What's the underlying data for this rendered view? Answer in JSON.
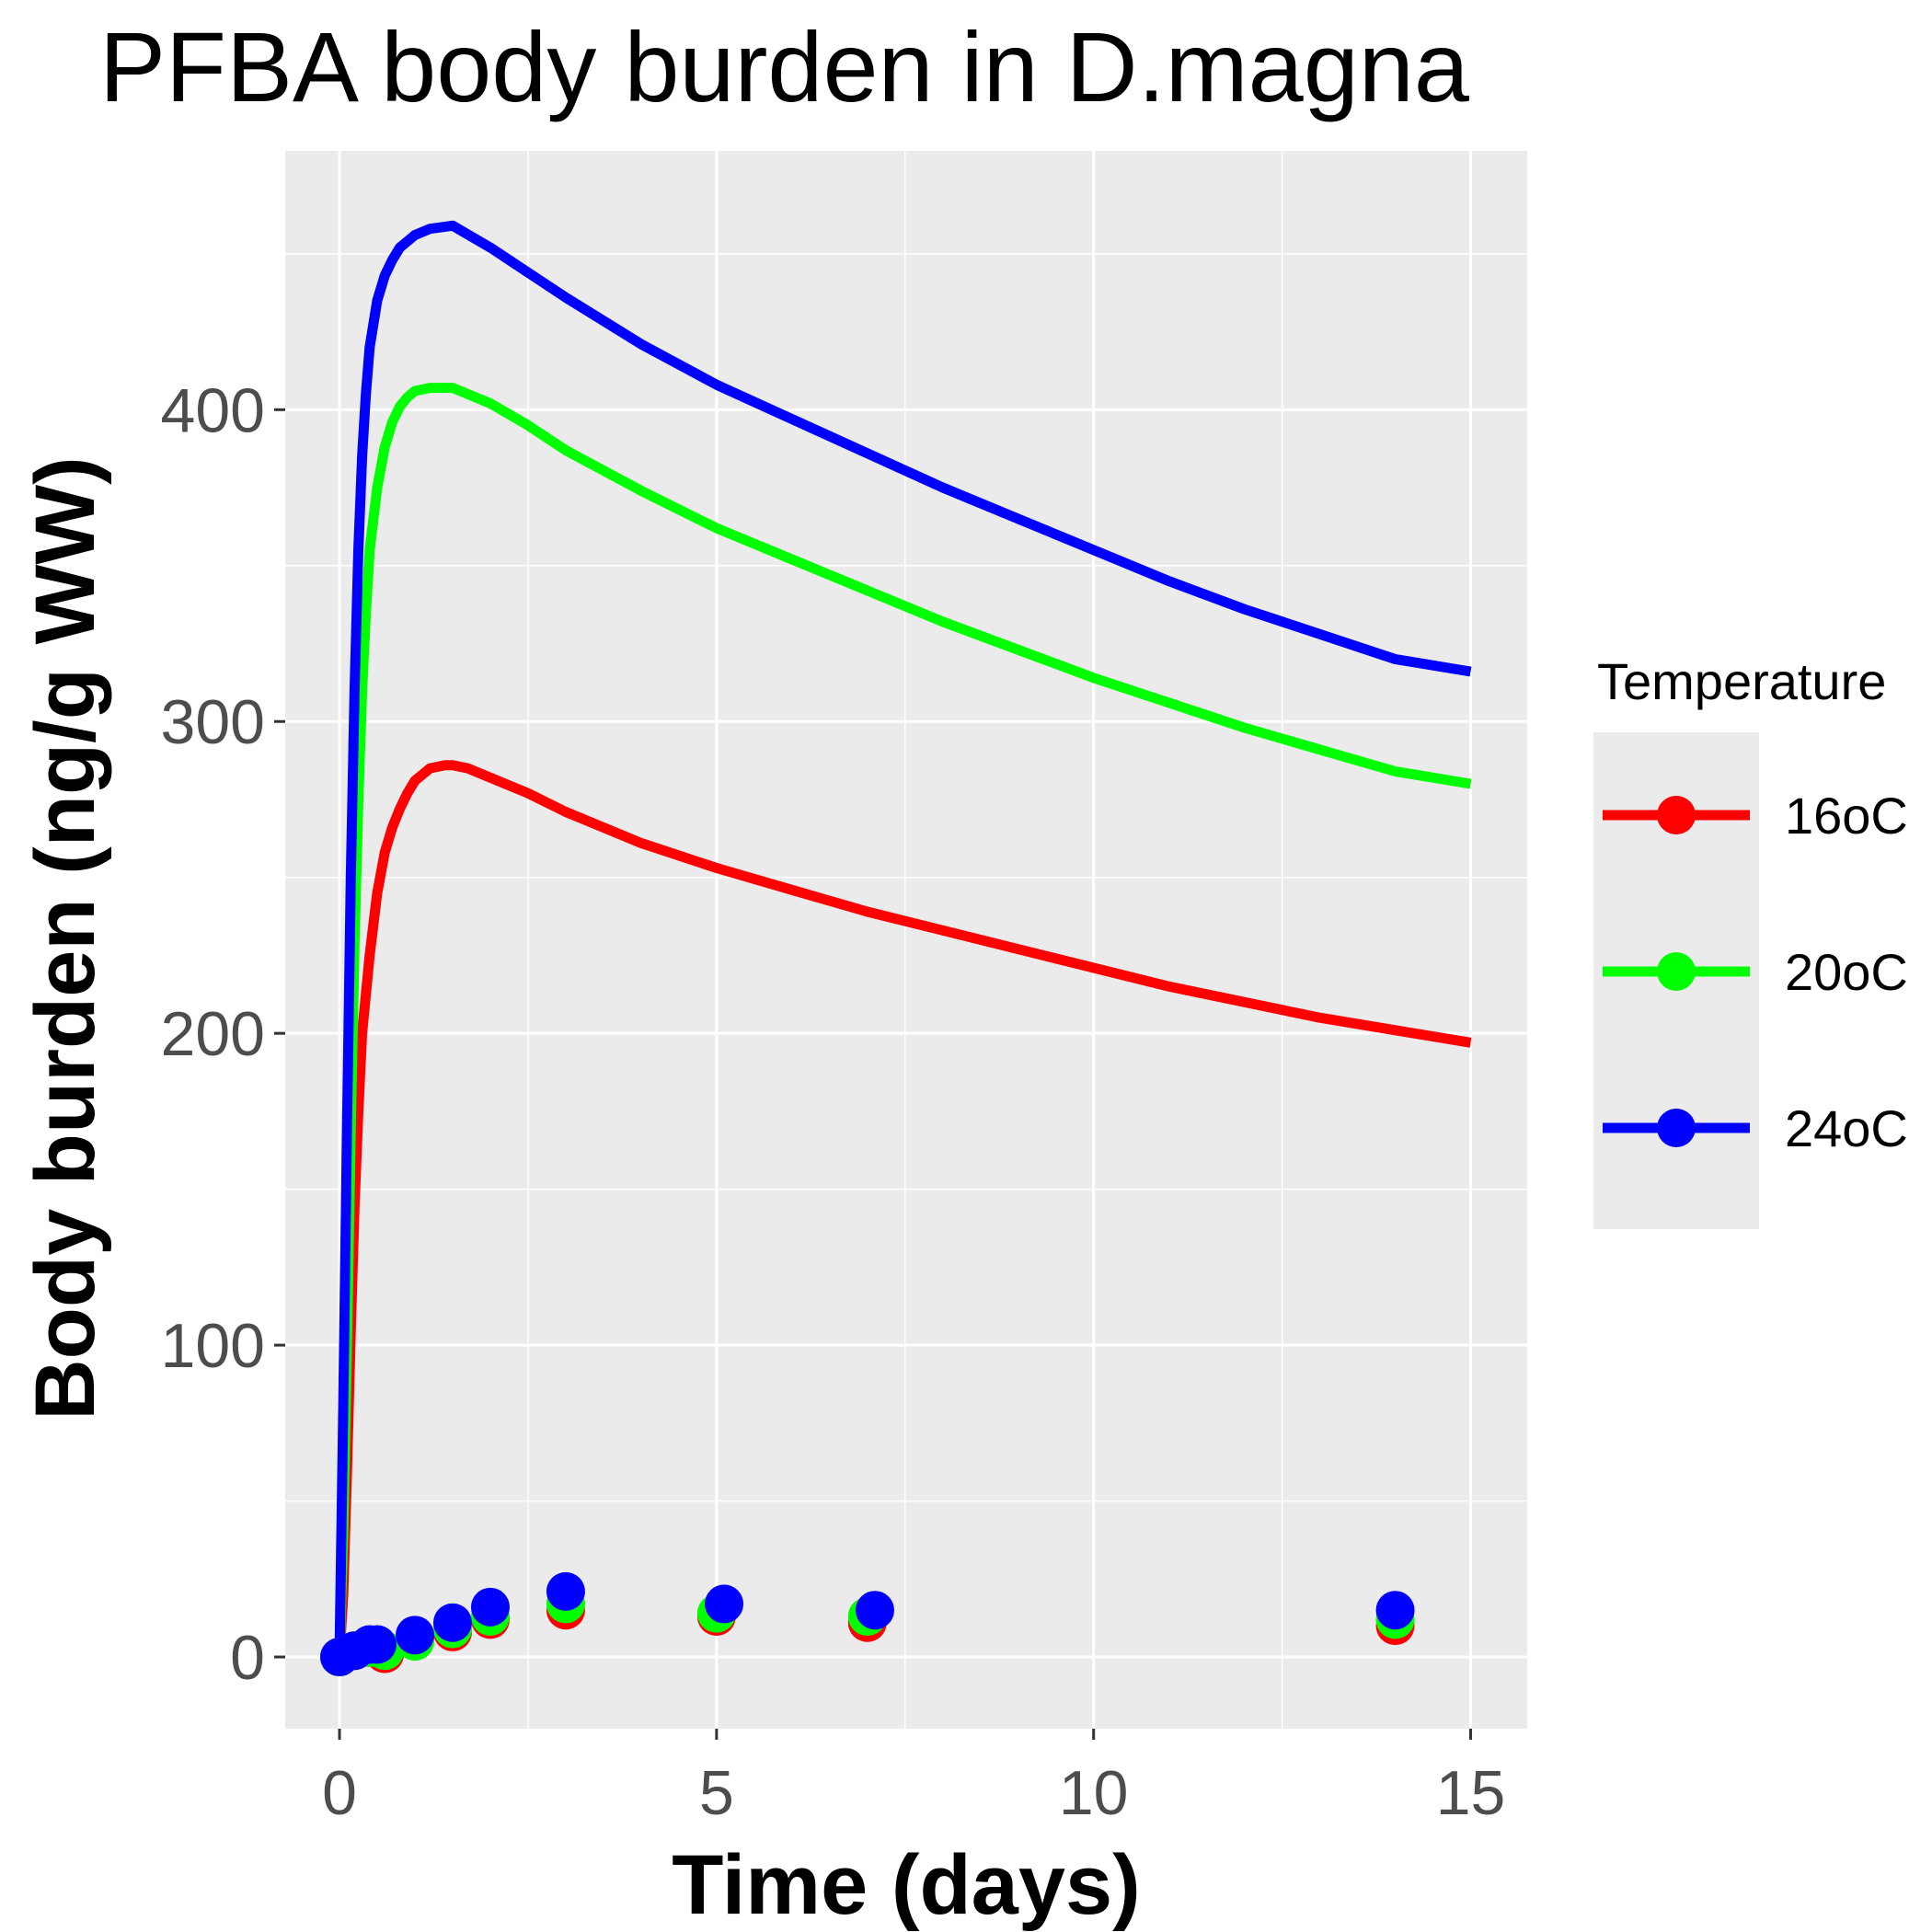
{
  "chart_data": {
    "type": "line",
    "title": "PFBA body burden in D.magna",
    "xlabel": "Time (days)",
    "ylabel": "Body burden (ng/g WW)",
    "xlim": [
      -0.72,
      15.75
    ],
    "ylim": [
      -23,
      483
    ],
    "x_ticks": [
      0,
      5,
      10,
      15
    ],
    "y_ticks": [
      0,
      100,
      200,
      300,
      400
    ],
    "grid": true,
    "legend": {
      "title": "Temperature",
      "position": "right"
    },
    "series": [
      {
        "name": "16oC",
        "color": "#ff0000",
        "line": [
          [
            0,
            0
          ],
          [
            0.05,
            20
          ],
          [
            0.1,
            60
          ],
          [
            0.15,
            105
          ],
          [
            0.2,
            145
          ],
          [
            0.25,
            175
          ],
          [
            0.3,
            200
          ],
          [
            0.4,
            225
          ],
          [
            0.5,
            245
          ],
          [
            0.6,
            258
          ],
          [
            0.7,
            266
          ],
          [
            0.8,
            272
          ],
          [
            0.9,
            277
          ],
          [
            1.0,
            281
          ],
          [
            1.2,
            285
          ],
          [
            1.4,
            286
          ],
          [
            1.5,
            286
          ],
          [
            1.7,
            285
          ],
          [
            2,
            282
          ],
          [
            2.5,
            277
          ],
          [
            3,
            271
          ],
          [
            4,
            261
          ],
          [
            5,
            253
          ],
          [
            6,
            246
          ],
          [
            7,
            239
          ],
          [
            8,
            233
          ],
          [
            9,
            227
          ],
          [
            10,
            221
          ],
          [
            11,
            215
          ],
          [
            12,
            210
          ],
          [
            13,
            205
          ],
          [
            14,
            201
          ],
          [
            15,
            197
          ]
        ],
        "points": [
          [
            0,
            0
          ],
          [
            0.2,
            2
          ],
          [
            0.4,
            3
          ],
          [
            0.6,
            1
          ],
          [
            1,
            6
          ],
          [
            1.5,
            8
          ],
          [
            2,
            12
          ],
          [
            3,
            15
          ],
          [
            5,
            13
          ],
          [
            7,
            11
          ],
          [
            14,
            10
          ]
        ]
      },
      {
        "name": "20oC",
        "color": "#00ff00",
        "line": [
          [
            0,
            0
          ],
          [
            0.05,
            40
          ],
          [
            0.1,
            100
          ],
          [
            0.15,
            170
          ],
          [
            0.2,
            230
          ],
          [
            0.25,
            275
          ],
          [
            0.3,
            310
          ],
          [
            0.35,
            335
          ],
          [
            0.4,
            355
          ],
          [
            0.5,
            375
          ],
          [
            0.6,
            388
          ],
          [
            0.7,
            396
          ],
          [
            0.8,
            401
          ],
          [
            0.9,
            404
          ],
          [
            1.0,
            406
          ],
          [
            1.2,
            407
          ],
          [
            1.5,
            407
          ],
          [
            2,
            402
          ],
          [
            2.5,
            395
          ],
          [
            3,
            387
          ],
          [
            4,
            374
          ],
          [
            5,
            362
          ],
          [
            6,
            352
          ],
          [
            7,
            342
          ],
          [
            8,
            332
          ],
          [
            9,
            323
          ],
          [
            10,
            314
          ],
          [
            11,
            306
          ],
          [
            12,
            298
          ],
          [
            13,
            291
          ],
          [
            14,
            284
          ],
          [
            15,
            280
          ]
        ],
        "points": [
          [
            0,
            0
          ],
          [
            0.2,
            2
          ],
          [
            0.4,
            3
          ],
          [
            0.6,
            2
          ],
          [
            1,
            5
          ],
          [
            1.5,
            9
          ],
          [
            2,
            13
          ],
          [
            3,
            17
          ],
          [
            5,
            14
          ],
          [
            7,
            13
          ],
          [
            14,
            12
          ]
        ]
      },
      {
        "name": "24oC",
        "color": "#0000ff",
        "line": [
          [
            0,
            0
          ],
          [
            0.05,
            80
          ],
          [
            0.1,
            170
          ],
          [
            0.15,
            250
          ],
          [
            0.2,
            310
          ],
          [
            0.25,
            355
          ],
          [
            0.3,
            385
          ],
          [
            0.35,
            405
          ],
          [
            0.4,
            420
          ],
          [
            0.5,
            435
          ],
          [
            0.6,
            443
          ],
          [
            0.7,
            448
          ],
          [
            0.8,
            452
          ],
          [
            0.9,
            454
          ],
          [
            1.0,
            456
          ],
          [
            1.2,
            458
          ],
          [
            1.5,
            459
          ],
          [
            2,
            452
          ],
          [
            2.5,
            444
          ],
          [
            3,
            436
          ],
          [
            4,
            421
          ],
          [
            5,
            408
          ],
          [
            6,
            397
          ],
          [
            7,
            386
          ],
          [
            8,
            375
          ],
          [
            9,
            365
          ],
          [
            10,
            355
          ],
          [
            11,
            345
          ],
          [
            12,
            336
          ],
          [
            13,
            328
          ],
          [
            14,
            320
          ],
          [
            15,
            316
          ]
        ],
        "points": [
          [
            0,
            0
          ],
          [
            0.2,
            2
          ],
          [
            0.4,
            4
          ],
          [
            0.5,
            4
          ],
          [
            1,
            7
          ],
          [
            1.5,
            11
          ],
          [
            2,
            16
          ],
          [
            3,
            21
          ],
          [
            5.1,
            17
          ],
          [
            7.1,
            15
          ],
          [
            14,
            15
          ]
        ]
      }
    ]
  }
}
